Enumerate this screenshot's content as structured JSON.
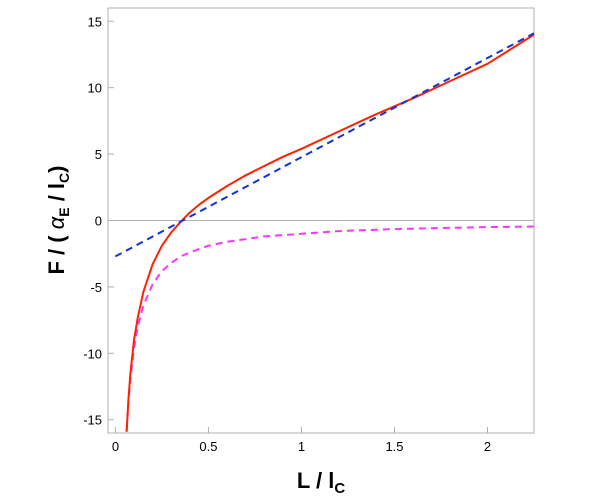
{
  "chart_data": {
    "type": "line",
    "title": "",
    "xlabel": {
      "main": "L / l",
      "sub": "C"
    },
    "ylabel": {
      "pre": "F / ( ",
      "greek": "α",
      "sub1": "E",
      "mid": " / l",
      "sub2": "C",
      "post": ")"
    },
    "xlim": [
      -0.04,
      2.25
    ],
    "ylim": [
      -16,
      16
    ],
    "xticks": [
      0,
      0.5,
      1,
      1.5,
      2
    ],
    "xtick_labels": [
      "0",
      "0.5",
      "1",
      "1.5",
      "2"
    ],
    "yticks": [
      -15,
      -10,
      -5,
      0,
      5,
      10,
      15
    ],
    "ytick_labels": [
      "-15",
      "-10",
      "-5",
      "0",
      "5",
      "10",
      "15"
    ],
    "grid": false,
    "zero_line": true,
    "series": [
      {
        "color": "#ff2200",
        "style": "solid",
        "x": [
          0.06,
          0.07,
          0.08,
          0.1,
          0.12,
          0.15,
          0.2,
          0.25,
          0.3,
          0.35,
          0.4,
          0.45,
          0.5,
          0.6,
          0.7,
          0.8,
          0.9,
          1.0,
          1.2,
          1.4,
          1.6,
          1.8,
          2.0,
          2.25
        ],
        "y": [
          -15.9,
          -13.4,
          -11.6,
          -9.0,
          -7.3,
          -5.4,
          -3.3,
          -1.9,
          -0.9,
          -0.1,
          0.6,
          1.2,
          1.7,
          2.6,
          3.4,
          4.1,
          4.8,
          5.4,
          6.7,
          8.0,
          9.2,
          10.5,
          11.8,
          14.0
        ]
      },
      {
        "color": "#ff33ff",
        "style": "dashed",
        "x": [
          0.06,
          0.07,
          0.08,
          0.1,
          0.12,
          0.15,
          0.2,
          0.25,
          0.3,
          0.35,
          0.4,
          0.5,
          0.6,
          0.7,
          0.8,
          1.0,
          1.2,
          1.5,
          1.8,
          2.0,
          2.25
        ],
        "y": [
          -15.9,
          -13.6,
          -12.0,
          -9.6,
          -8.0,
          -6.4,
          -4.8,
          -3.8,
          -3.2,
          -2.7,
          -2.4,
          -1.9,
          -1.6,
          -1.4,
          -1.2,
          -1.0,
          -0.8,
          -0.65,
          -0.55,
          -0.5,
          -0.45
        ]
      },
      {
        "color": "#1133dd",
        "style": "dashed",
        "x": [
          0,
          2.25
        ],
        "y": [
          -2.7,
          14.1
        ]
      }
    ]
  }
}
